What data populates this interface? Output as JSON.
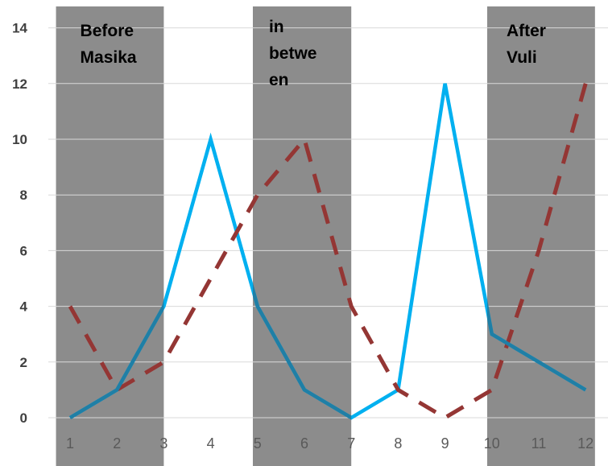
{
  "chart_data": {
    "type": "line",
    "title": "",
    "xlabel": "",
    "ylabel": "",
    "categories": [
      "1",
      "2",
      "3",
      "4",
      "5",
      "6",
      "7",
      "8",
      "9",
      "10",
      "11",
      "12"
    ],
    "ylim": [
      0,
      14
    ],
    "yticks": [
      "0",
      "2",
      "4",
      "6",
      "8",
      "10",
      "12",
      "14"
    ],
    "grid": true,
    "series": [
      {
        "values": [
          0,
          1,
          4,
          10,
          4,
          1,
          0,
          1,
          12,
          3,
          2,
          1
        ],
        "color": "#00B0F0",
        "style": "solid"
      },
      {
        "values": [
          4,
          1,
          2,
          5,
          8,
          10,
          4,
          1,
          0,
          1,
          6,
          12
        ],
        "color": "#943634",
        "style": "dashed"
      }
    ],
    "bands": [
      {
        "from": 0.7,
        "to": 3.0,
        "label_lines": [
          "Before",
          "Masika"
        ],
        "color": "#8C8C8C"
      },
      {
        "from": 4.9,
        "to": 7.0,
        "label_lines": [
          "in",
          "betwe",
          "en"
        ],
        "color": "#8C8C8C"
      },
      {
        "from": 9.9,
        "to": 12.2,
        "label_lines": [
          "After",
          "Vuli"
        ],
        "color": "#8C8C8C"
      }
    ],
    "colors": {
      "grid": "#D9D9D9",
      "band": "#8C8C8C",
      "band_overlay_line": "#1F7FA6"
    }
  }
}
